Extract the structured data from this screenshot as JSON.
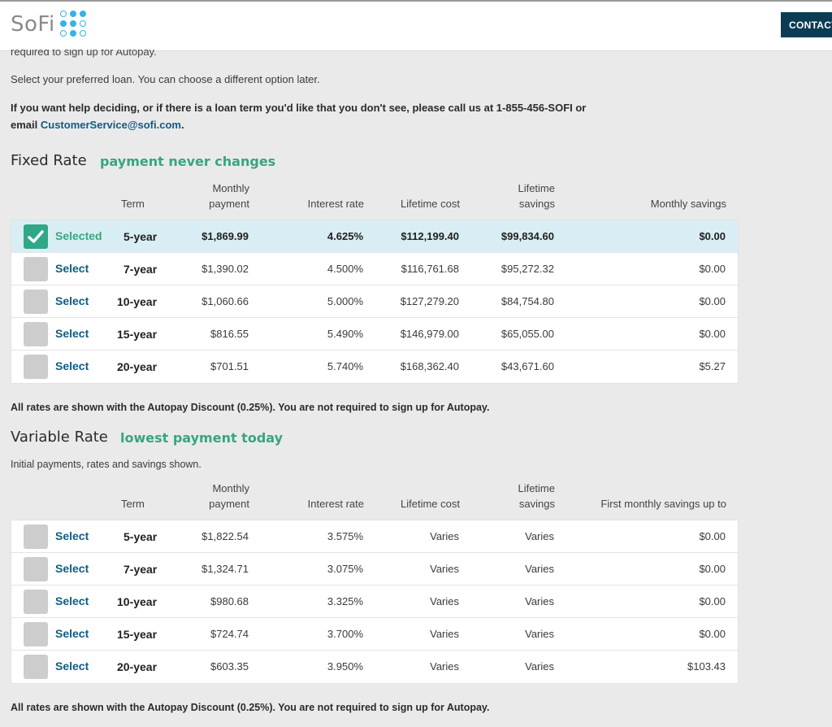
{
  "header": {
    "logo_text": "SoFi",
    "contact_label": "CONTACT"
  },
  "intro": {
    "cut_text": "required to sign up for Autopay.",
    "select_text": "Select your preferred loan. You can choose a different option later.",
    "help_text": "If you want help deciding, or if there is a loan term you'd like that you don't see, please call us at 1-855-456-SOFI or",
    "help_email_prefix": "email",
    "help_email": "CustomerService@sofi.com",
    "help_email_suffix": "."
  },
  "fixed": {
    "title": "Fixed Rate",
    "tag": "payment never changes",
    "headers": {
      "term": "Term",
      "monthly_1": "Monthly",
      "monthly_2": "payment",
      "rate": "Interest rate",
      "cost": "Lifetime cost",
      "savings_1": "Lifetime",
      "savings_2": "savings",
      "monthly_savings": "Monthly savings"
    },
    "rows": [
      {
        "select": "Selected",
        "term": "5-year",
        "payment": "$1,869.99",
        "rate": "4.625%",
        "cost": "$112,199.40",
        "savings": "$99,834.60",
        "monthly_savings": "$0.00"
      },
      {
        "select": "Select",
        "term": "7-year",
        "payment": "$1,390.02",
        "rate": "4.500%",
        "cost": "$116,761.68",
        "savings": "$95,272.32",
        "monthly_savings": "$0.00"
      },
      {
        "select": "Select",
        "term": "10-year",
        "payment": "$1,060.66",
        "rate": "5.000%",
        "cost": "$127,279.20",
        "savings": "$84,754.80",
        "monthly_savings": "$0.00"
      },
      {
        "select": "Select",
        "term": "15-year",
        "payment": "$816.55",
        "rate": "5.490%",
        "cost": "$146,979.00",
        "savings": "$65,055.00",
        "monthly_savings": "$0.00"
      },
      {
        "select": "Select",
        "term": "20-year",
        "payment": "$701.51",
        "rate": "5.740%",
        "cost": "$168,362.40",
        "savings": "$43,671.60",
        "monthly_savings": "$5.27"
      }
    ],
    "note": "All rates are shown with the Autopay Discount (0.25%). You are not required to sign up for Autopay."
  },
  "variable": {
    "title": "Variable Rate",
    "tag": "lowest payment today",
    "subtitle": "Initial payments, rates and savings shown.",
    "headers": {
      "term": "Term",
      "monthly_1": "Monthly",
      "monthly_2": "payment",
      "rate": "Interest rate",
      "cost": "Lifetime cost",
      "savings_1": "Lifetime",
      "savings_2": "savings",
      "monthly_savings": "First monthly savings up to"
    },
    "rows": [
      {
        "select": "Select",
        "term": "5-year",
        "payment": "$1,822.54",
        "rate": "3.575%",
        "cost": "Varies",
        "savings": "Varies",
        "monthly_savings": "$0.00"
      },
      {
        "select": "Select",
        "term": "7-year",
        "payment": "$1,324.71",
        "rate": "3.075%",
        "cost": "Varies",
        "savings": "Varies",
        "monthly_savings": "$0.00"
      },
      {
        "select": "Select",
        "term": "10-year",
        "payment": "$980.68",
        "rate": "3.325%",
        "cost": "Varies",
        "savings": "Varies",
        "monthly_savings": "$0.00"
      },
      {
        "select": "Select",
        "term": "15-year",
        "payment": "$724.74",
        "rate": "3.700%",
        "cost": "Varies",
        "savings": "Varies",
        "monthly_savings": "$0.00"
      },
      {
        "select": "Select",
        "term": "20-year",
        "payment": "$603.35",
        "rate": "3.950%",
        "cost": "Varies",
        "savings": "Varies",
        "monthly_savings": "$103.43"
      }
    ],
    "note": "All rates are shown with the Autopay Discount (0.25%). You are not required to sign up for Autopay."
  },
  "colors": {
    "accent_green": "#37a67d",
    "link_blue": "#0d5c86",
    "selected_row": "#d9eef4",
    "header_button": "#0c3b54",
    "logo_blue": "#34b3e8"
  }
}
